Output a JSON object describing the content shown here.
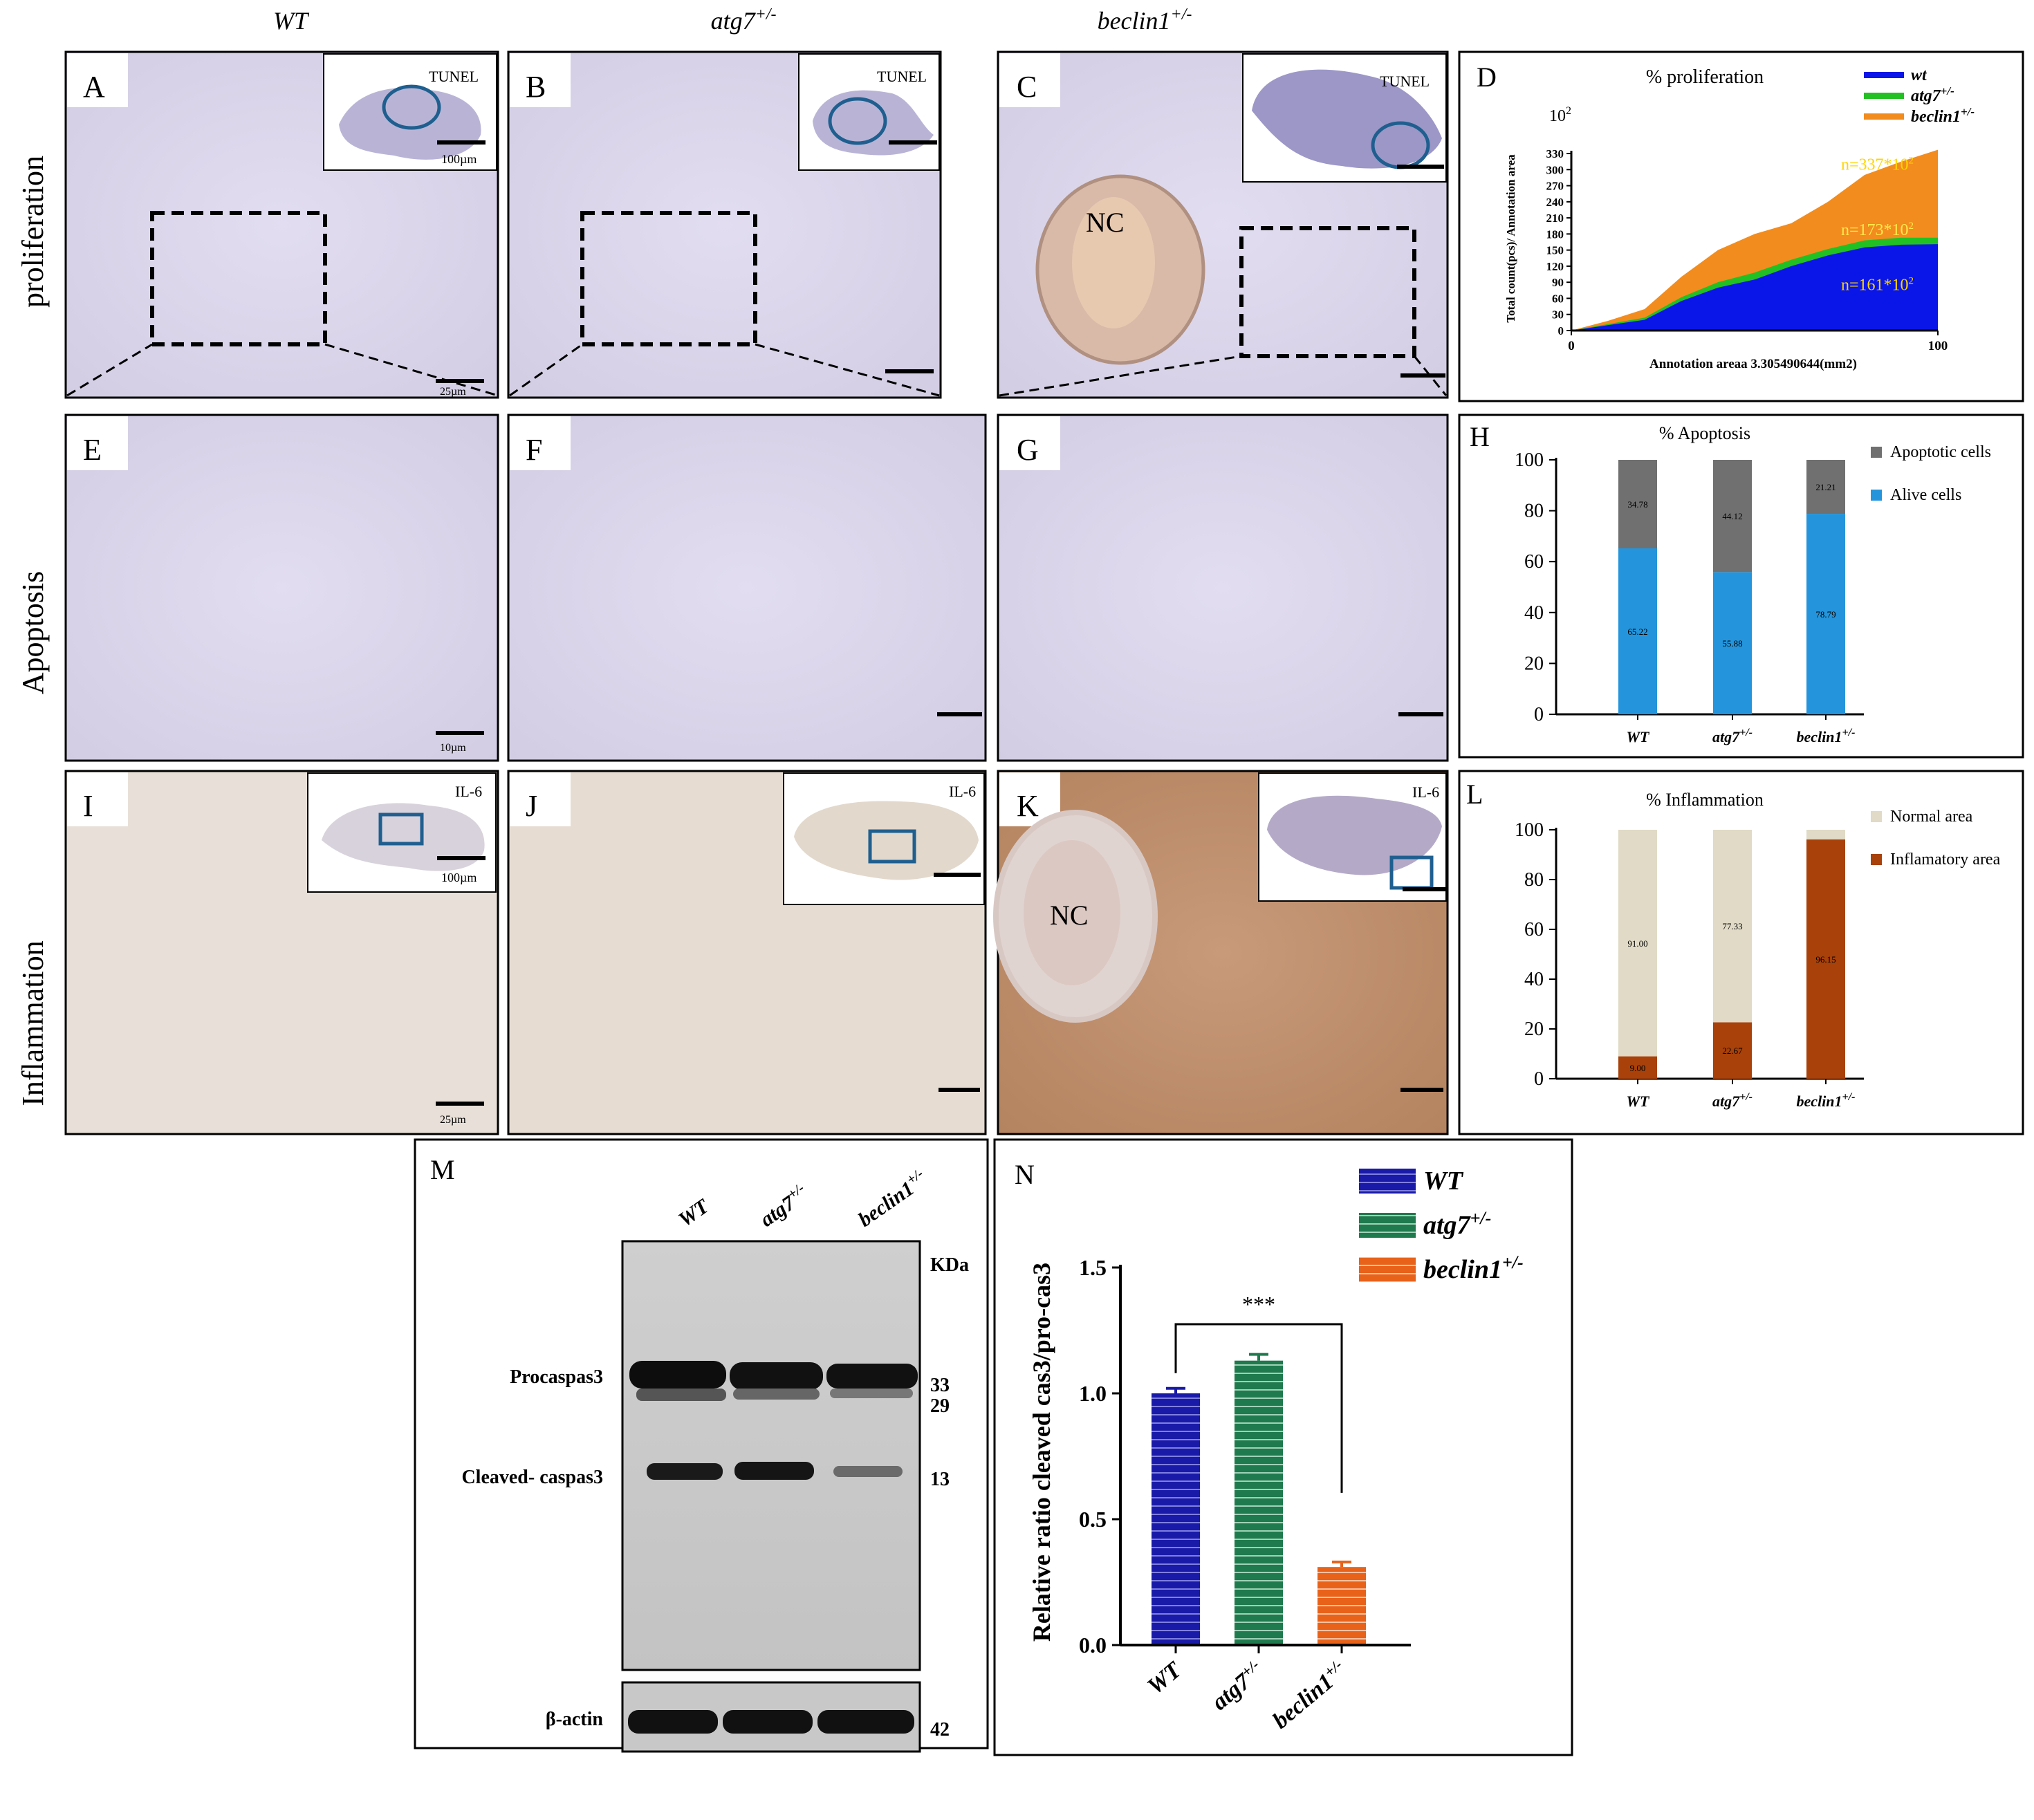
{
  "columns": {
    "wt": "WT",
    "atg7": "atg7",
    "atg7_sup": "+/-",
    "beclin": "beclin1",
    "beclin_sup": "+/-"
  },
  "rows": {
    "proliferation": "proliferation",
    "apoptosis": "Apoptosis",
    "inflammation": "Inflammation"
  },
  "panels": {
    "A": "A",
    "B": "B",
    "C": "C",
    "D": "D",
    "E": "E",
    "F": "F",
    "G": "G",
    "H": "H",
    "I": "I",
    "J": "J",
    "K": "K",
    "L": "L",
    "M": "M",
    "N": "N"
  },
  "insets": {
    "tunel": "TUNEL",
    "il6": "IL-6",
    "nc": "NC"
  },
  "scalebars": {
    "s100": "100µm",
    "s25": "25µm",
    "s10": "10µm"
  },
  "chart_data": [
    {
      "id": "D",
      "type": "area",
      "title": "% proliferation",
      "multiplier": "10",
      "multiplier_exp": "2",
      "ylabel": "Total count(pcs)/ Annotation area",
      "xlabel": "Annotation areaa 3.305490644(mm2)",
      "xlim": [
        0,
        100
      ],
      "ylim": [
        0,
        330
      ],
      "yticks": [
        0,
        30,
        60,
        90,
        120,
        150,
        180,
        210,
        240,
        270,
        300,
        330
      ],
      "xticks": [
        0,
        100
      ],
      "x": [
        0,
        10,
        20,
        30,
        40,
        50,
        60,
        70,
        80,
        90,
        100
      ],
      "series": [
        {
          "name": "wt",
          "sup": "",
          "color": "#0a16e8",
          "values": [
            0,
            10,
            20,
            55,
            80,
            95,
            120,
            140,
            155,
            160,
            161
          ]
        },
        {
          "name": "atg7",
          "sup": "+/-",
          "color": "#22c022",
          "values": [
            0,
            12,
            24,
            62,
            90,
            108,
            132,
            152,
            168,
            173,
            173
          ]
        },
        {
          "name": "beclin1",
          "sup": "+/-",
          "color": "#f28c1e",
          "values": [
            0,
            18,
            40,
            100,
            150,
            180,
            200,
            240,
            290,
            315,
            337
          ]
        }
      ],
      "annotations": [
        "n=337*10",
        "n=173*10",
        "n=161*10"
      ],
      "annotation_exp": "2"
    },
    {
      "id": "H",
      "type": "bar",
      "stacked": true,
      "title": "% Apoptosis",
      "categories": [
        "WT",
        "atg7",
        "beclin1"
      ],
      "category_sups": [
        "",
        "+/-",
        "+/-"
      ],
      "ylim": [
        0,
        100
      ],
      "yticks": [
        0,
        20,
        40,
        60,
        80,
        100
      ],
      "series": [
        {
          "name": "Alive cells",
          "color": "#2495dc",
          "values": [
            65.22,
            55.88,
            78.79
          ],
          "labels": [
            "65.22",
            "55.88",
            "78.79"
          ]
        },
        {
          "name": "Apoptotic cells",
          "color": "#707070",
          "values": [
            34.78,
            44.12,
            21.21
          ],
          "labels": [
            "34.78",
            "44.12",
            "21.21"
          ]
        }
      ],
      "legend": "right"
    },
    {
      "id": "L",
      "type": "bar",
      "stacked": true,
      "title": "% Inflammation",
      "categories": [
        "WT",
        "atg7",
        "beclin1"
      ],
      "category_sups": [
        "",
        "+/-",
        "+/-"
      ],
      "ylim": [
        0,
        100
      ],
      "yticks": [
        0,
        20,
        40,
        60,
        80,
        100
      ],
      "series": [
        {
          "name": "Inflamatory area",
          "color": "#a8410a",
          "values": [
            9.0,
            22.67,
            96.15
          ],
          "labels": [
            "9.00",
            "22.67",
            "96.15"
          ]
        },
        {
          "name": "Normal area",
          "color": "#e0dac6",
          "values": [
            91.0,
            77.33,
            3.85
          ],
          "labels": [
            "91.00",
            "77.33",
            ""
          ]
        }
      ],
      "legend": "right"
    },
    {
      "id": "M",
      "type": "western-blot",
      "lanes": [
        "WT",
        "atg7",
        "beclin1"
      ],
      "lane_sups": [
        "",
        "+/-",
        "+/-"
      ],
      "unit": "KDa",
      "bands": [
        {
          "label": "Procaspas3",
          "kda": "33"
        },
        {
          "label": "",
          "kda": "29"
        },
        {
          "label": "Cleaved- caspas3",
          "kda": "13"
        },
        {
          "label": "β-actin",
          "kda": "42"
        }
      ]
    },
    {
      "id": "N",
      "type": "bar",
      "ylabel": "Relative ratio cleaved cas3/pro-cas3",
      "categories": [
        "WT",
        "atg7",
        "beclin1"
      ],
      "category_sups": [
        "",
        "+/-",
        "+/-"
      ],
      "values": [
        1.0,
        1.13,
        0.31
      ],
      "errors": [
        0.02,
        0.025,
        0.02
      ],
      "colors": [
        "#1a1aa8",
        "#1f7a4d",
        "#e8621a"
      ],
      "ylim": [
        0,
        1.5
      ],
      "yticks": [
        0.0,
        0.5,
        1.0,
        1.5
      ],
      "ytick_labels": [
        "0.0",
        "0.5",
        "1.0",
        "1.5"
      ],
      "significance": "***",
      "legend": [
        {
          "name": "WT",
          "sup": "",
          "color": "#1a1aa8"
        },
        {
          "name": "atg7",
          "sup": "+/-",
          "color": "#1f7a4d"
        },
        {
          "name": "beclin1",
          "sup": "+/-",
          "color": "#e8621a"
        }
      ]
    }
  ]
}
